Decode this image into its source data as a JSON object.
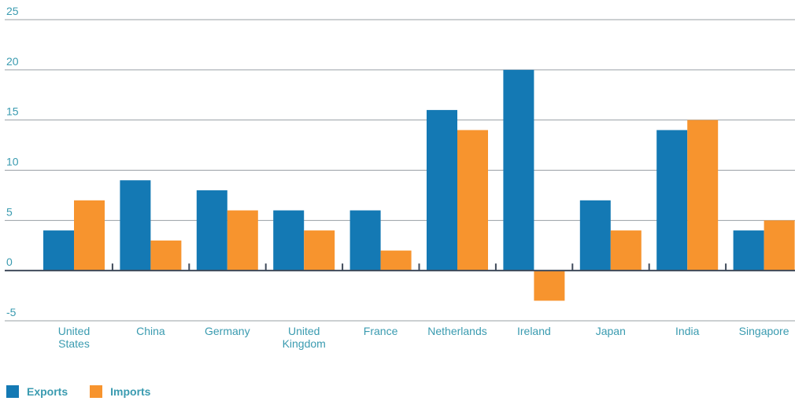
{
  "chart_data": {
    "type": "bar",
    "categories": [
      [
        "United",
        "States"
      ],
      [
        "China"
      ],
      [
        "Germany"
      ],
      [
        "United",
        "Kingdom"
      ],
      [
        "France"
      ],
      [
        "Netherlands"
      ],
      [
        "Ireland"
      ],
      [
        "Japan"
      ],
      [
        "India"
      ],
      [
        "Singapore"
      ]
    ],
    "series": [
      {
        "name": "Exports",
        "color": "#1479b4",
        "values": [
          4,
          9,
          8,
          6,
          6,
          16,
          20,
          7,
          14,
          4
        ]
      },
      {
        "name": "Imports",
        "color": "#f7942e",
        "values": [
          7,
          3,
          6,
          4,
          2,
          14,
          -3,
          4,
          15,
          5
        ]
      }
    ],
    "yticks": [
      -5,
      0,
      5,
      10,
      15,
      20,
      25
    ],
    "ylim": [
      -5,
      25
    ],
    "grid": true,
    "legend_position": "bottom-left",
    "title": "",
    "xlabel": "",
    "ylabel": ""
  },
  "legend": {
    "exports_label": "Exports",
    "imports_label": "Imports"
  }
}
